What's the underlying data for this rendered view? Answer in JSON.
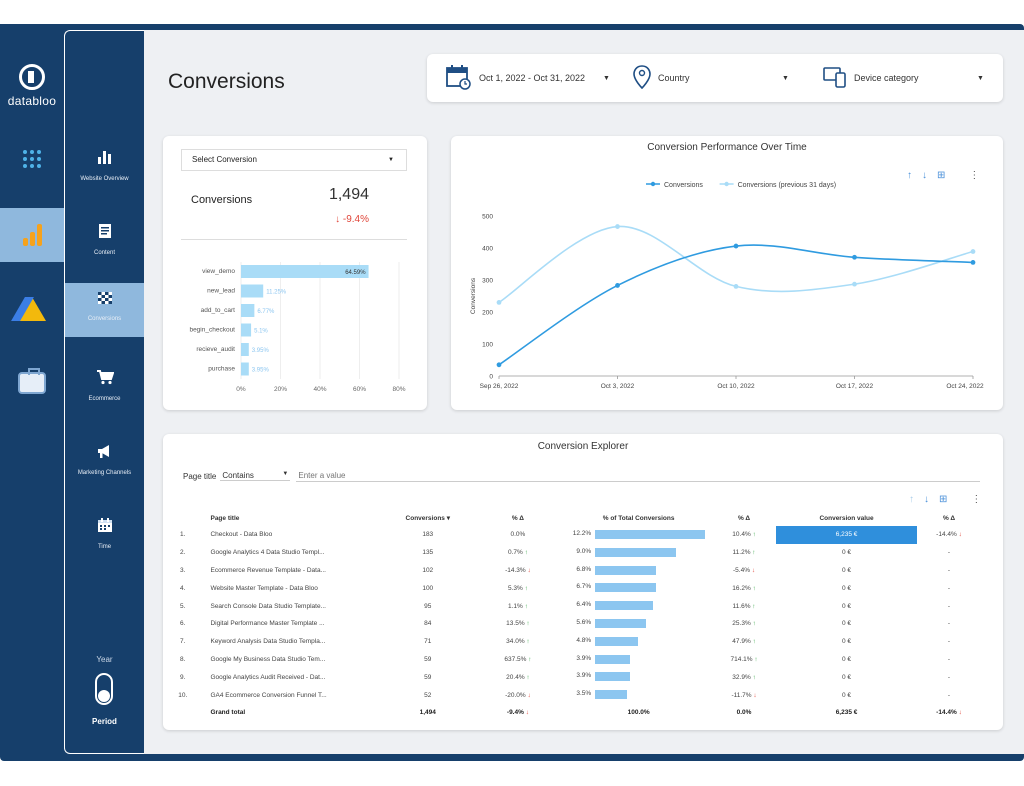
{
  "brand": {
    "name": "databloo"
  },
  "rail": {
    "items": [
      {
        "name": "apps-grid"
      },
      {
        "name": "google-analytics"
      },
      {
        "name": "google-ads"
      },
      {
        "name": "search-console"
      }
    ]
  },
  "sidebar": {
    "items": [
      {
        "label": "Website Overview",
        "icon": "bar-chart-icon"
      },
      {
        "label": "Content",
        "icon": "document-icon"
      },
      {
        "label": "Conversions",
        "icon": "checkered-flag-icon"
      },
      {
        "label": "Ecommerce",
        "icon": "cart-icon"
      },
      {
        "label": "Marketing Channels",
        "icon": "megaphone-icon"
      },
      {
        "label": "Time",
        "icon": "calendar-icon"
      }
    ],
    "period_year": "Year",
    "period_label": "Period"
  },
  "header": {
    "title": "Conversions"
  },
  "filters": {
    "date_range": "Oct 1, 2022 - Oct 31, 2022",
    "country": "Country",
    "device": "Device category"
  },
  "kpi": {
    "select_placeholder": "Select Conversion",
    "label": "Conversions",
    "value": "1,494",
    "delta": "-9.4%"
  },
  "chart_data": [
    {
      "type": "bar",
      "orientation": "horizontal",
      "categories": [
        "view_demo",
        "new_lead",
        "add_to_cart",
        "begin_checkout",
        "recieve_audit",
        "purchase"
      ],
      "values": [
        64.59,
        11.25,
        6.77,
        5.1,
        3.95,
        3.95
      ],
      "labels": [
        "64.59%",
        "11.25%",
        "6.77%",
        "5.1%",
        "3.95%",
        "3.95%"
      ],
      "xticks": [
        "0%",
        "20%",
        "40%",
        "60%",
        "80%"
      ],
      "xlim": [
        0,
        80
      ]
    },
    {
      "type": "line",
      "title": "Conversion Performance Over Time",
      "x": [
        "Sep 26, 2022",
        "Oct 3, 2022",
        "Oct 10, 2022",
        "Oct 17, 2022",
        "Oct 24, 2022"
      ],
      "series": [
        {
          "name": "Conversions",
          "values": [
            35,
            283,
            406,
            371,
            355
          ],
          "color": "#2f9be0"
        },
        {
          "name": "Conversions (previous 31 days)",
          "values": [
            230,
            467,
            280,
            287,
            389
          ],
          "color": "#a9dcf7"
        }
      ],
      "ylabel": "Conversions",
      "yticks": [
        "0",
        "100",
        "200",
        "300",
        "400",
        "500"
      ],
      "ylim": [
        0,
        500
      ]
    }
  ],
  "explorer": {
    "title": "Conversion Explorer",
    "filter_label": "Page title",
    "filter_op": "Contains",
    "filter_placeholder": "Enter a value",
    "columns": [
      "Page title",
      "Conversions",
      "% Δ",
      "% of Total Conversions",
      "% Δ",
      "Conversion value",
      "% Δ"
    ],
    "rows": [
      {
        "idx": "1.",
        "page": "Checkout - Data Bloo",
        "conv": "183",
        "d1": "0.0%",
        "d1dir": "",
        "share": "12.2%",
        "share_val": 12.2,
        "d2": "10.4%",
        "d2dir": "up",
        "value": "6,235 €",
        "d3": "-14.4%",
        "d3dir": "down"
      },
      {
        "idx": "2.",
        "page": "Google Analytics 4 Data Studio Templ...",
        "conv": "135",
        "d1": "0.7%",
        "d1dir": "up",
        "share": "9.0%",
        "share_val": 9.0,
        "d2": "11.2%",
        "d2dir": "up",
        "value": "0 €",
        "d3": "-",
        "d3dir": ""
      },
      {
        "idx": "3.",
        "page": "Ecommerce Revenue Template - Data...",
        "conv": "102",
        "d1": "-14.3%",
        "d1dir": "down",
        "share": "6.8%",
        "share_val": 6.8,
        "d2": "-5.4%",
        "d2dir": "down",
        "value": "0 €",
        "d3": "-",
        "d3dir": ""
      },
      {
        "idx": "4.",
        "page": "Website Master Template - Data Bloo",
        "conv": "100",
        "d1": "5.3%",
        "d1dir": "up",
        "share": "6.7%",
        "share_val": 6.7,
        "d2": "16.2%",
        "d2dir": "up",
        "value": "0 €",
        "d3": "-",
        "d3dir": ""
      },
      {
        "idx": "5.",
        "page": "Search Console Data Studio Template...",
        "conv": "95",
        "d1": "1.1%",
        "d1dir": "up",
        "share": "6.4%",
        "share_val": 6.4,
        "d2": "11.6%",
        "d2dir": "up",
        "value": "0 €",
        "d3": "-",
        "d3dir": ""
      },
      {
        "idx": "6.",
        "page": "Digital Performance Master Template ...",
        "conv": "84",
        "d1": "13.5%",
        "d1dir": "up",
        "share": "5.6%",
        "share_val": 5.6,
        "d2": "25.3%",
        "d2dir": "up",
        "value": "0 €",
        "d3": "-",
        "d3dir": ""
      },
      {
        "idx": "7.",
        "page": "Keyword Analysis Data Studio Templa...",
        "conv": "71",
        "d1": "34.0%",
        "d1dir": "up",
        "share": "4.8%",
        "share_val": 4.8,
        "d2": "47.9%",
        "d2dir": "up",
        "value": "0 €",
        "d3": "-",
        "d3dir": ""
      },
      {
        "idx": "8.",
        "page": "Google My Business Data Studio Tem...",
        "conv": "59",
        "d1": "637.5%",
        "d1dir": "up",
        "share": "3.9%",
        "share_val": 3.9,
        "d2": "714.1%",
        "d2dir": "up",
        "value": "0 €",
        "d3": "-",
        "d3dir": ""
      },
      {
        "idx": "9.",
        "page": "Google Analytics Audit Received - Dat...",
        "conv": "59",
        "d1": "20.4%",
        "d1dir": "up",
        "share": "3.9%",
        "share_val": 3.9,
        "d2": "32.9%",
        "d2dir": "up",
        "value": "0 €",
        "d3": "-",
        "d3dir": ""
      },
      {
        "idx": "10.",
        "page": "GA4 Ecommerce Conversion Funnel T...",
        "conv": "52",
        "d1": "-20.0%",
        "d1dir": "down",
        "share": "3.5%",
        "share_val": 3.5,
        "d2": "-11.7%",
        "d2dir": "down",
        "value": "0 €",
        "d3": "-",
        "d3dir": ""
      }
    ],
    "total": {
      "label": "Grand total",
      "conv": "1,494",
      "d1": "-9.4%",
      "d1dir": "down",
      "share": "100.0%",
      "d2": "0.0%",
      "value": "6,235 €",
      "d3": "-14.4%",
      "d3dir": "down"
    }
  }
}
